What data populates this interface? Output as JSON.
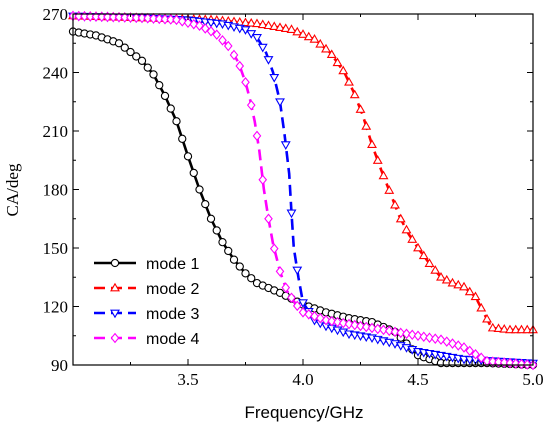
{
  "chart_data": {
    "type": "line",
    "xlabel": "Frequency/GHz",
    "ylabel": "CA/deg",
    "xlim": [
      3.0,
      5.0
    ],
    "ylim": [
      90,
      270
    ],
    "xticks": [
      3.5,
      4.0,
      4.5,
      5.0
    ],
    "xtick_labels": [
      "3.5",
      "4.0",
      "4.5",
      "5.0"
    ],
    "yticks": [
      90,
      120,
      150,
      180,
      210,
      240,
      270
    ],
    "ytick_labels": [
      "90",
      "120",
      "150",
      "180",
      "210",
      "240",
      "270"
    ],
    "grid": false,
    "legend_position": "bottom-left",
    "series": [
      {
        "name": "mode 1",
        "color": "#000000",
        "dash": "solid",
        "marker": "circle",
        "points": [
          [
            3.0,
            261
          ],
          [
            3.1,
            259
          ],
          [
            3.2,
            255
          ],
          [
            3.3,
            246
          ],
          [
            3.35,
            239
          ],
          [
            3.4,
            228
          ],
          [
            3.45,
            215
          ],
          [
            3.5,
            197
          ],
          [
            3.55,
            180
          ],
          [
            3.6,
            165
          ],
          [
            3.65,
            153
          ],
          [
            3.7,
            144
          ],
          [
            3.75,
            137
          ],
          [
            3.8,
            132
          ],
          [
            3.9,
            127
          ],
          [
            4.0,
            121
          ],
          [
            4.1,
            117
          ],
          [
            4.2,
            114
          ],
          [
            4.3,
            112
          ],
          [
            4.4,
            107
          ],
          [
            4.5,
            95
          ],
          [
            4.6,
            91
          ],
          [
            4.8,
            91
          ],
          [
            5.0,
            90
          ]
        ]
      },
      {
        "name": "mode 2",
        "color": "#ff0000",
        "dash": "dash",
        "marker": "triangle-up",
        "points": [
          [
            3.0,
            269
          ],
          [
            3.3,
            268
          ],
          [
            3.6,
            267
          ],
          [
            3.8,
            265
          ],
          [
            3.95,
            262
          ],
          [
            4.05,
            257
          ],
          [
            4.12,
            250
          ],
          [
            4.18,
            240
          ],
          [
            4.22,
            230
          ],
          [
            4.26,
            218
          ],
          [
            4.3,
            203
          ],
          [
            4.34,
            190
          ],
          [
            4.38,
            178
          ],
          [
            4.42,
            166
          ],
          [
            4.46,
            157
          ],
          [
            4.5,
            150
          ],
          [
            4.55,
            142
          ],
          [
            4.6,
            135
          ],
          [
            4.65,
            132
          ],
          [
            4.7,
            130
          ],
          [
            4.75,
            125
          ],
          [
            4.78,
            118
          ],
          [
            4.82,
            109
          ],
          [
            4.9,
            108
          ],
          [
            5.0,
            108
          ]
        ]
      },
      {
        "name": "mode 3",
        "color": "#0000ff",
        "dash": "dash",
        "marker": "triangle-down",
        "points": [
          [
            3.0,
            269
          ],
          [
            3.3,
            268
          ],
          [
            3.5,
            267
          ],
          [
            3.65,
            265
          ],
          [
            3.75,
            262
          ],
          [
            3.8,
            258
          ],
          [
            3.84,
            250
          ],
          [
            3.87,
            240
          ],
          [
            3.9,
            225
          ],
          [
            3.92,
            208
          ],
          [
            3.94,
            188
          ],
          [
            3.95,
            168
          ],
          [
            3.96,
            150
          ],
          [
            3.98,
            135
          ],
          [
            4.0,
            122
          ],
          [
            4.05,
            113
          ],
          [
            4.1,
            110
          ],
          [
            4.2,
            106
          ],
          [
            4.3,
            104
          ],
          [
            4.4,
            101
          ],
          [
            4.5,
            97
          ],
          [
            4.7,
            93
          ],
          [
            5.0,
            91
          ]
        ]
      },
      {
        "name": "mode 4",
        "color": "#ff00ff",
        "dash": "dash",
        "marker": "diamond",
        "points": [
          [
            3.0,
            269
          ],
          [
            3.3,
            268
          ],
          [
            3.45,
            267
          ],
          [
            3.55,
            264
          ],
          [
            3.62,
            260
          ],
          [
            3.68,
            253
          ],
          [
            3.72,
            245
          ],
          [
            3.75,
            235
          ],
          [
            3.77,
            226
          ],
          [
            3.79,
            215
          ],
          [
            3.81,
            200
          ],
          [
            3.83,
            180
          ],
          [
            3.85,
            165
          ],
          [
            3.87,
            152
          ],
          [
            3.9,
            138
          ],
          [
            3.93,
            128
          ],
          [
            3.97,
            121
          ],
          [
            4.0,
            117
          ],
          [
            4.1,
            113
          ],
          [
            4.2,
            111
          ],
          [
            4.3,
            109
          ],
          [
            4.4,
            107
          ],
          [
            4.5,
            105
          ],
          [
            4.6,
            103
          ],
          [
            4.7,
            99
          ],
          [
            4.8,
            92
          ],
          [
            4.9,
            91
          ],
          [
            5.0,
            90
          ]
        ]
      }
    ]
  }
}
